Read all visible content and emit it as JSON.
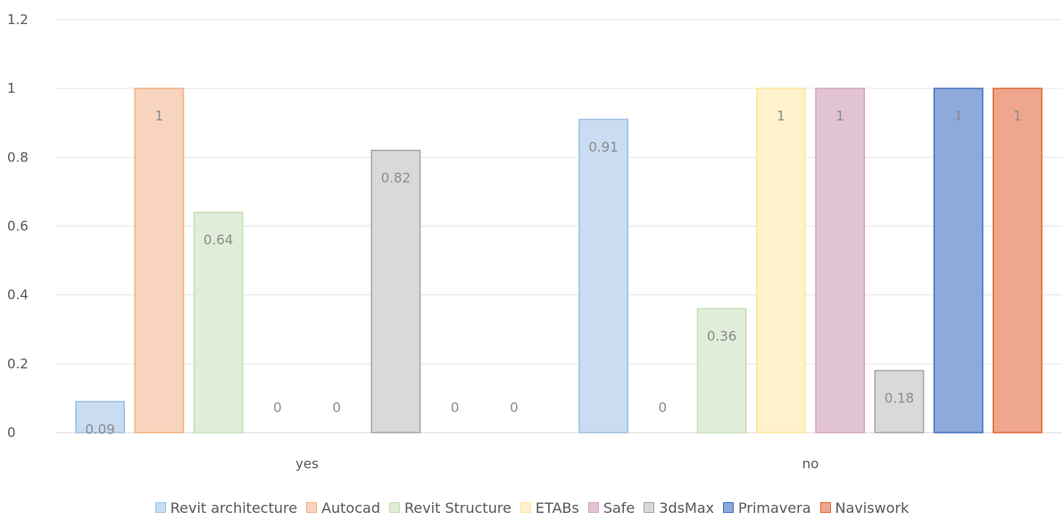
{
  "chart_data": {
    "type": "bar",
    "categories": [
      "yes",
      "no"
    ],
    "ylim": [
      0,
      1.2
    ],
    "yticks": [
      "0",
      "0.2",
      "0.4",
      "0.6",
      "0.8",
      "1",
      "1.2"
    ],
    "grid": true,
    "legend_position": "bottom",
    "series": [
      {
        "name": "Revit architecture",
        "fill": "#c9dcf2",
        "stroke": "#9dc3e6",
        "labelColor": "#8c8c8c",
        "values": [
          0.09,
          0.91
        ],
        "labels": [
          "0.09",
          "0.91"
        ]
      },
      {
        "name": "Autocad",
        "fill": "#f8d4bf",
        "stroke": "#f4b183",
        "labelColor": "#8c8c8c",
        "values": [
          1,
          0
        ],
        "labels": [
          "1",
          "0"
        ]
      },
      {
        "name": "Revit Structure",
        "fill": "#e0edd8",
        "stroke": "#c5e0b4",
        "labelColor": "#8c8c8c",
        "values": [
          0.64,
          0.36
        ],
        "labels": [
          "0.64",
          "0.36"
        ]
      },
      {
        "name": "ETABs",
        "fill": "#fff2cc",
        "stroke": "#ffe699",
        "labelColor": "#8c8c8c",
        "values": [
          0,
          1
        ],
        "labels": [
          "0",
          "1"
        ]
      },
      {
        "name": "Safe",
        "fill": "#e2c3d3",
        "stroke": "#d5a6bd",
        "labelColor": "#8c8c8c",
        "values": [
          0,
          1
        ],
        "labels": [
          "0",
          "1"
        ]
      },
      {
        "name": "3dsMax",
        "fill": "#d9d9d9",
        "stroke": "#a6a6a6",
        "labelColor": "#8c8c8c",
        "values": [
          0.82,
          0.18
        ],
        "labels": [
          "0.82",
          "0.18"
        ]
      },
      {
        "name": "Primavera",
        "fill": "#8eaadb",
        "stroke": "#4472c4",
        "labelColor": "#b4c7e7",
        "values": [
          0,
          1
        ],
        "labels": [
          "0",
          "1"
        ]
      },
      {
        "name": "Naviswork",
        "fill": "#eea78e",
        "stroke": "#e06a38",
        "labelColor": "#f8cbad",
        "values": [
          0,
          1
        ],
        "labels": [
          "0",
          "1"
        ]
      }
    ]
  }
}
